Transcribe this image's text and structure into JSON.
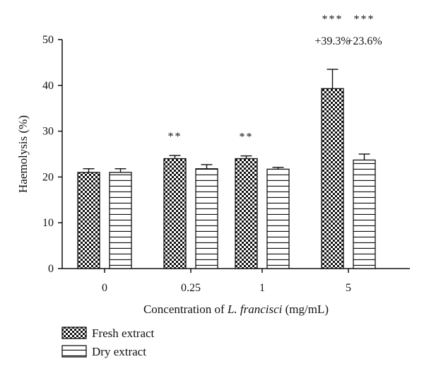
{
  "chart_data": {
    "type": "bar",
    "categories": [
      "0",
      "0.25",
      "1",
      "5"
    ],
    "series": [
      {
        "name": "Fresh extract",
        "pattern": "checker",
        "values": [
          21.0,
          24.0,
          24.0,
          39.3
        ],
        "errors": [
          0.8,
          0.7,
          0.6,
          4.2
        ]
      },
      {
        "name": "Dry extract",
        "pattern": "horizontal-lines",
        "values": [
          21.0,
          21.8,
          21.7,
          23.7
        ],
        "errors": [
          0.8,
          0.9,
          0.4,
          1.3
        ]
      }
    ],
    "significance": [
      {
        "category": "0.25",
        "series": "Fresh extract",
        "label": "**"
      },
      {
        "category": "1",
        "series": "Fresh extract",
        "label": "**"
      },
      {
        "category": "5",
        "series": "Fresh extract",
        "label": "***",
        "change": "+39.3%"
      },
      {
        "category": "5",
        "series": "Dry extract",
        "label": "***",
        "change": "+23.6%"
      }
    ],
    "ylabel": "Haemolysis (%)",
    "xlabel_prefix": "Concentration of ",
    "xlabel_italic": "L. francisci",
    "xlabel_suffix": " (mg/mL)",
    "ylim": [
      0,
      50
    ],
    "yticks": [
      0,
      10,
      20,
      30,
      40,
      50
    ],
    "grid": false,
    "legend_position": "bottom-left"
  }
}
